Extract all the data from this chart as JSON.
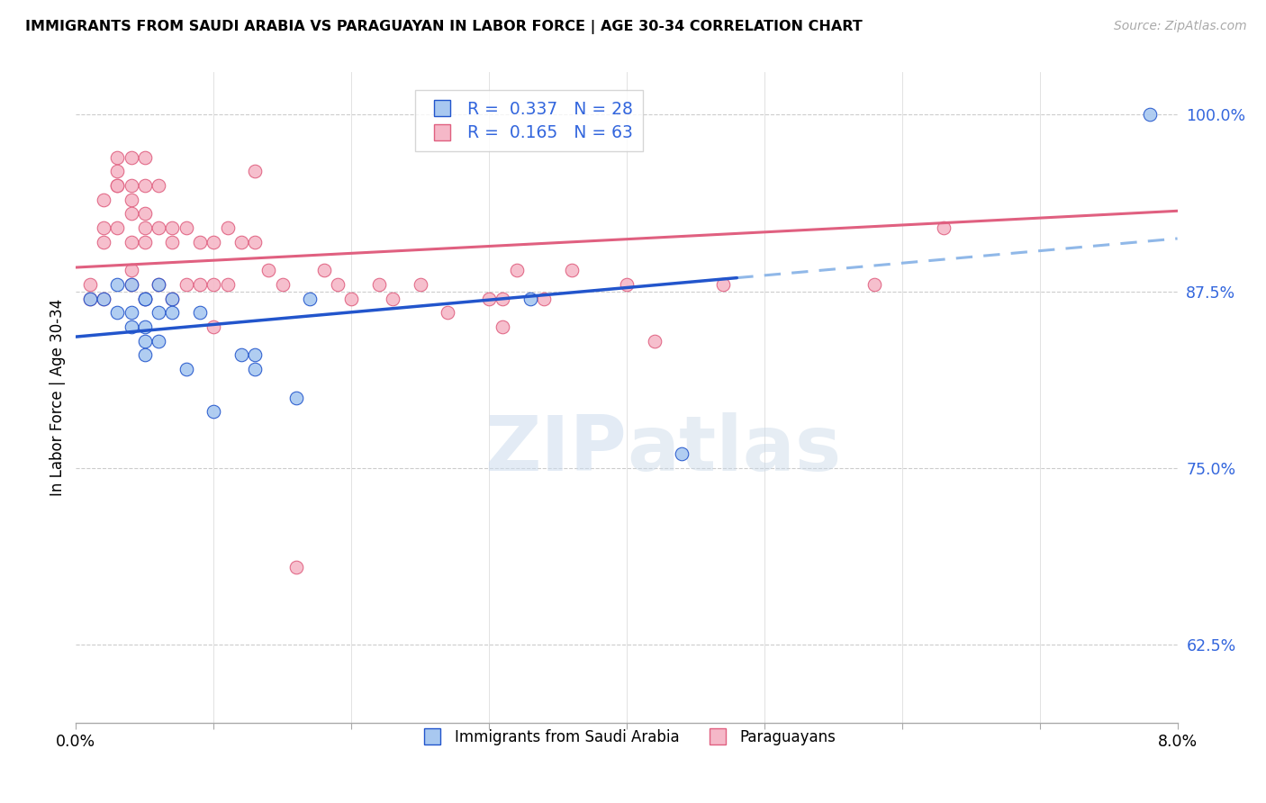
{
  "title": "IMMIGRANTS FROM SAUDI ARABIA VS PARAGUAYAN IN LABOR FORCE | AGE 30-34 CORRELATION CHART",
  "source": "Source: ZipAtlas.com",
  "ylabel": "In Labor Force | Age 30-34",
  "xlim": [
    0.0,
    0.08
  ],
  "ylim": [
    0.57,
    1.03
  ],
  "yticks": [
    0.625,
    0.75,
    0.875,
    1.0
  ],
  "ytick_labels": [
    "62.5%",
    "75.0%",
    "87.5%",
    "100.0%"
  ],
  "saudi_color": "#a8c8f0",
  "paraguay_color": "#f5b8c8",
  "saudi_line_color": "#2255cc",
  "paraguay_line_color": "#e06080",
  "saudi_dashed_color": "#90b8e8",
  "legend_R_saudi": "0.337",
  "legend_N_saudi": "28",
  "legend_R_paraguay": "0.165",
  "legend_N_paraguay": "63",
  "saudi_x": [
    0.001,
    0.002,
    0.003,
    0.003,
    0.004,
    0.004,
    0.004,
    0.005,
    0.005,
    0.005,
    0.005,
    0.005,
    0.006,
    0.006,
    0.006,
    0.007,
    0.007,
    0.008,
    0.009,
    0.01,
    0.012,
    0.013,
    0.013,
    0.016,
    0.017,
    0.033,
    0.044,
    0.078
  ],
  "saudi_y": [
    0.87,
    0.87,
    0.88,
    0.86,
    0.88,
    0.85,
    0.86,
    0.87,
    0.87,
    0.85,
    0.84,
    0.83,
    0.88,
    0.86,
    0.84,
    0.87,
    0.86,
    0.82,
    0.86,
    0.79,
    0.83,
    0.83,
    0.82,
    0.8,
    0.87,
    0.87,
    0.76,
    1.0
  ],
  "paraguay_x": [
    0.001,
    0.001,
    0.002,
    0.002,
    0.002,
    0.002,
    0.003,
    0.003,
    0.003,
    0.003,
    0.003,
    0.004,
    0.004,
    0.004,
    0.004,
    0.004,
    0.004,
    0.004,
    0.005,
    0.005,
    0.005,
    0.005,
    0.005,
    0.005,
    0.006,
    0.006,
    0.006,
    0.007,
    0.007,
    0.007,
    0.008,
    0.008,
    0.009,
    0.009,
    0.01,
    0.01,
    0.01,
    0.011,
    0.011,
    0.012,
    0.013,
    0.013,
    0.014,
    0.015,
    0.016,
    0.018,
    0.019,
    0.02,
    0.022,
    0.023,
    0.025,
    0.027,
    0.03,
    0.031,
    0.031,
    0.032,
    0.034,
    0.036,
    0.04,
    0.042,
    0.047,
    0.058,
    0.063
  ],
  "paraguay_y": [
    0.87,
    0.88,
    0.94,
    0.92,
    0.91,
    0.87,
    0.97,
    0.96,
    0.95,
    0.95,
    0.92,
    0.97,
    0.95,
    0.94,
    0.93,
    0.91,
    0.89,
    0.88,
    0.97,
    0.95,
    0.93,
    0.92,
    0.91,
    0.87,
    0.95,
    0.92,
    0.88,
    0.92,
    0.91,
    0.87,
    0.92,
    0.88,
    0.91,
    0.88,
    0.91,
    0.88,
    0.85,
    0.92,
    0.88,
    0.91,
    0.91,
    0.96,
    0.89,
    0.88,
    0.68,
    0.89,
    0.88,
    0.87,
    0.88,
    0.87,
    0.88,
    0.86,
    0.87,
    0.87,
    0.85,
    0.89,
    0.87,
    0.89,
    0.88,
    0.84,
    0.88,
    0.88,
    0.92
  ],
  "watermark_zip": "ZIP",
  "watermark_atlas": "atlas"
}
